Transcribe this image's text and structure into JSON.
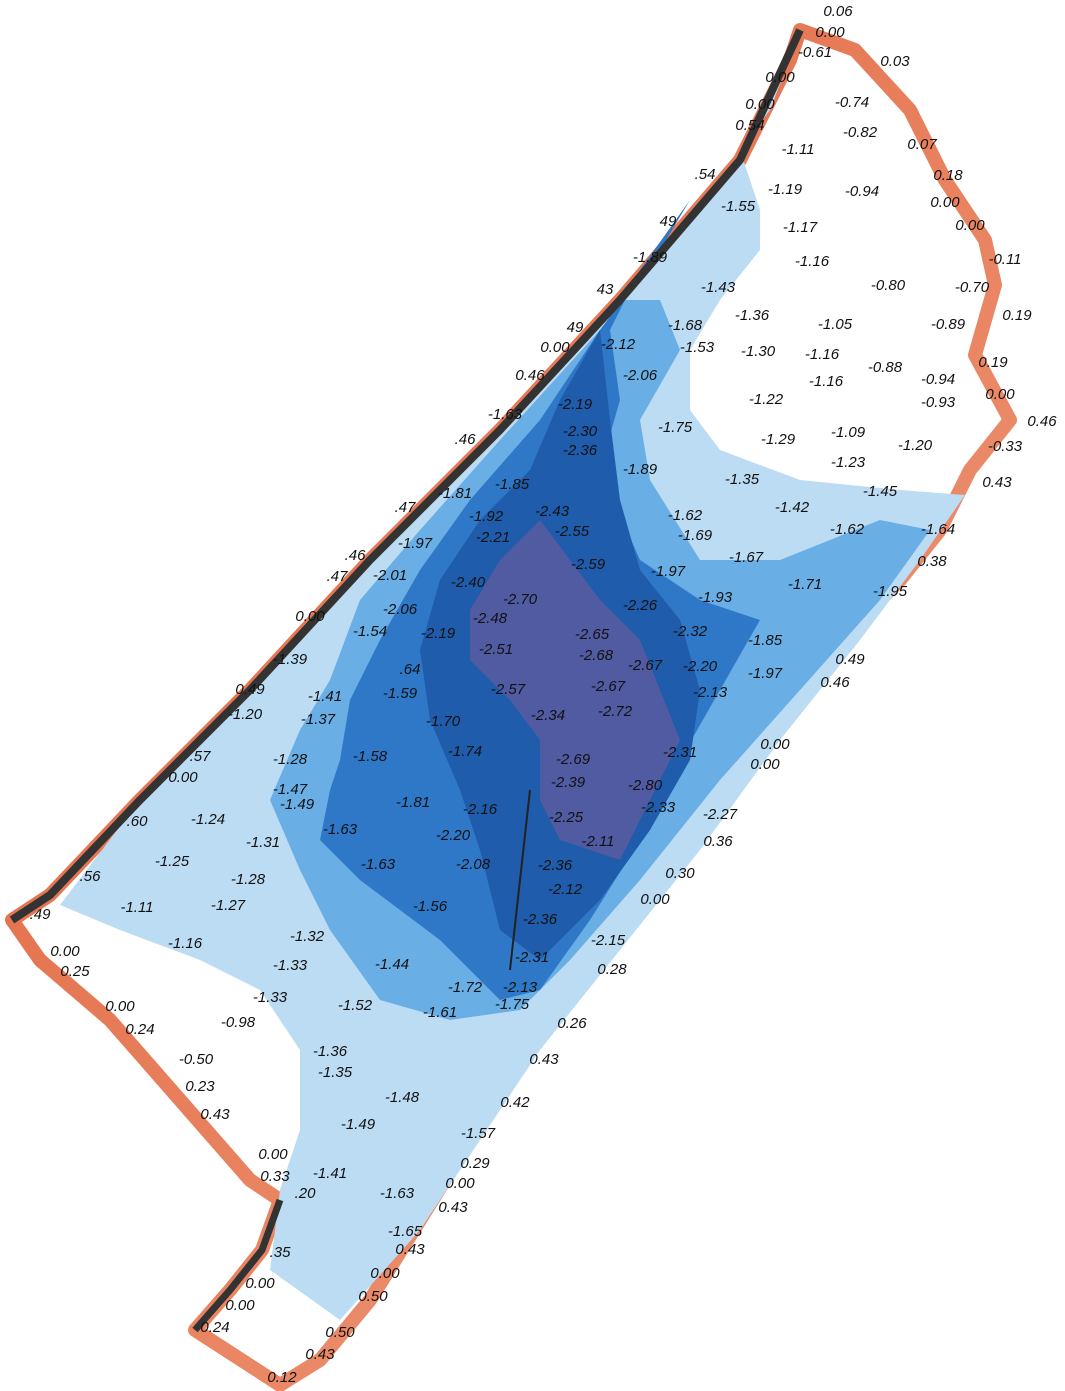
{
  "spot_elevations": [
    "0.06",
    "0.00",
    "-0.61",
    "0.03",
    "0.00",
    "0.00",
    "-0.74",
    "0.54",
    "-0.82",
    "0.07",
    "-1.11",
    "0.18",
    ".54",
    "-1.19",
    "-0.94",
    "-1.55",
    "0.00",
    "0.00",
    "49",
    "-1.17",
    "-1.89",
    "-1.16",
    "-0.11",
    "-0.80",
    "-0.70",
    "-1.43",
    "43",
    "0.19",
    "-1.68",
    "-1.36",
    "-1.05",
    "-0.89",
    "49",
    "-2.12",
    "-1.53",
    "-1.30",
    "-1.16",
    "0.00",
    "0.19",
    "-0.88",
    "0.46",
    "-2.06",
    "-1.16",
    "-0.94",
    "0.00",
    "-0.93",
    "-1.22",
    "-2.19",
    "0.46",
    "-1.63",
    "-1.75",
    "-2.30",
    "-1.09",
    "-1.29",
    "-1.20",
    "-0.33",
    ".46",
    "-2.36",
    "-1.23",
    "-1.89",
    "-1.35",
    "0.43",
    "-1.85",
    "-1.81",
    "-1.45",
    ".47",
    "-2.43",
    "-1.42",
    "-1.92",
    "-1.62",
    "-2.55",
    "-2.21",
    "-1.69",
    "-1.62",
    "-1.64",
    "-1.97",
    ".46",
    "-1.67",
    "-2.59",
    "0.38",
    ".47",
    "-2.01",
    "-1.97",
    "-2.40",
    "-1.71",
    "-1.95",
    "-2.70",
    "-1.93",
    "-2.26",
    "-2.06",
    "0.00",
    "-2.48",
    "-1.54",
    "-2.19",
    "-2.65",
    "-2.32",
    "-2.51",
    "-1.85",
    "-2.68",
    "-1.39",
    "0.49",
    ".64",
    "-2.67",
    "-2.20",
    "-1.97",
    "0.46",
    "-2.67",
    "-1.59",
    "0.49",
    "-1.41",
    "-2.57",
    "-2.13",
    "-1.20",
    "-1.37",
    "-2.72",
    "-2.34",
    "-1.70",
    "0.00",
    ".57",
    "-1.28",
    "-1.58",
    "-1.74",
    "-2.31",
    "0.00",
    "0.00",
    "-2.69",
    "-1.47",
    "-2.39",
    "-2.80",
    "-1.49",
    "-1.81",
    "-2.16",
    "-2.33",
    "-2.27",
    ".60",
    "-1.24",
    "-2.25",
    "-1.63",
    "-2.20",
    "-2.11",
    "-1.31",
    "0.36",
    "-2.36",
    "-1.25",
    "-1.63",
    "-2.08",
    "0.30",
    ".56",
    "-1.28",
    "-2.12",
    "0.00",
    "-1.11",
    "-1.27",
    "-1.56",
    ".49",
    "-2.36",
    "-1.32",
    "-2.15",
    "-1.16",
    "0.00",
    "-2.31",
    "0.25",
    "-1.33",
    "-1.44",
    "0.28",
    "-1.72",
    "-2.13",
    "-1.33",
    "0.00",
    "-1.52",
    "-1.75",
    "-1.61",
    "-0.98",
    "0.24",
    "0.26",
    "-1.36",
    "-0.50",
    "0.43",
    "-1.35",
    "0.23",
    "-1.48",
    "0.42",
    "0.43",
    "-1.49",
    "-1.57",
    "0.29",
    "0.00",
    "-1.41",
    "0.33",
    "0.00",
    ".20",
    "-1.63",
    "0.43",
    "-1.65",
    "0.43",
    ".35",
    "0.00",
    "0.00",
    "0.50",
    "0.00",
    "0.24",
    "0.50",
    "0.43",
    "0.12"
  ]
}
